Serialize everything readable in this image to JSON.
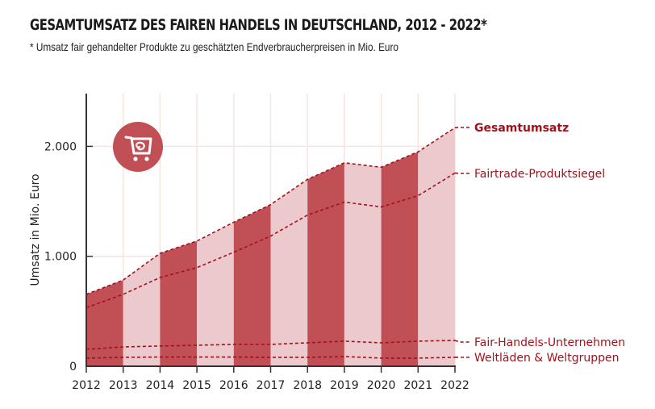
{
  "title": "GESAMTUMSATZ DES FAIREN HANDELS IN DEUTSCHLAND, 2012 - 2022*",
  "subtitle": "* Umsatz fair gehandelter Produkte zu geschätzten Endverbraucherpreisen in Mio. Euro",
  "colors": {
    "dark_band": "#c05055",
    "light_band": "#ecc9cc",
    "line": "#a3111a",
    "grid": "#f8e4df",
    "axis": "#333333",
    "icon_circle": "#c05055"
  },
  "icon": "shopping-cart-icon",
  "chart_data": {
    "type": "area",
    "title": "GESAMTUMSATZ DES FAIREN HANDELS IN DEUTSCHLAND, 2012 - 2022*",
    "xlabel": "",
    "ylabel": "Umsatz in Mio. Euro",
    "x": [
      2012,
      2013,
      2014,
      2015,
      2016,
      2017,
      2018,
      2019,
      2020,
      2021,
      2022
    ],
    "x_tick_labels": [
      "2012",
      "2013",
      "2014",
      "2015",
      "2016",
      "2017",
      "2018",
      "2019",
      "2020",
      "2021",
      "2022"
    ],
    "y_ticks": [
      0,
      1000,
      2000
    ],
    "y_tick_labels": [
      "0",
      "1.000",
      "2.000"
    ],
    "ylim": [
      0,
      2480
    ],
    "grid": true,
    "legend_placement": "right (line-end labels)",
    "series": [
      {
        "name": "Gesamtumsatz",
        "bold": true,
        "filled": true,
        "values": [
          654,
          784,
          1027,
          1139,
          1310,
          1470,
          1700,
          1850,
          1810,
          1950,
          2170
        ]
      },
      {
        "name": "Fairtrade-Produktsiegel",
        "bold": false,
        "filled": false,
        "values": [
          533,
          654,
          807,
          897,
          1037,
          1184,
          1375,
          1493,
          1449,
          1551,
          1757
        ]
      },
      {
        "name": "Fair-Handels-Unternehmen",
        "bold": false,
        "filled": false,
        "values": [
          154,
          176,
          184,
          191,
          199,
          199,
          213,
          228,
          213,
          228,
          235
        ]
      },
      {
        "name": "Weltläden & Weltgruppen",
        "bold": false,
        "filled": false,
        "values": [
          74,
          81,
          84,
          84,
          84,
          81,
          81,
          88,
          74,
          74,
          81
        ]
      }
    ]
  }
}
